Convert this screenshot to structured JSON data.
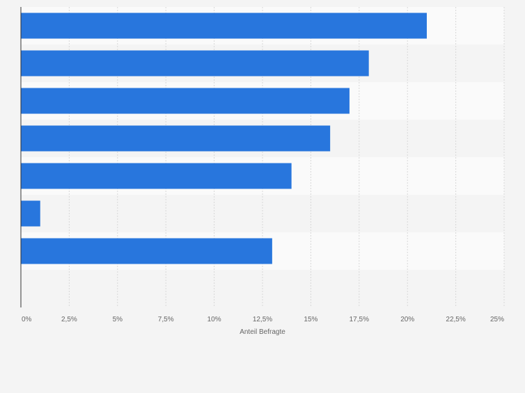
{
  "chart_data": {
    "type": "bar",
    "orientation": "horizontal",
    "categories": [
      "",
      "",
      "",
      "",
      "",
      "",
      "",
      ""
    ],
    "values": [
      21,
      18,
      17,
      16,
      14,
      1,
      13,
      null
    ],
    "xlabel": "Anteil Befragte",
    "xlim": [
      0,
      25
    ],
    "x_ticks": [
      0,
      2.5,
      5,
      7.5,
      10,
      12.5,
      15,
      17.5,
      20,
      22.5,
      25
    ],
    "x_tick_labels": [
      "0%",
      "2,5%",
      "5%",
      "7,5%",
      "10%",
      "12,5%",
      "15%",
      "17,5%",
      "20%",
      "22,5%",
      "25%"
    ],
    "grid": true,
    "legend": "none",
    "colors": {
      "bar": "#2876dd",
      "band_light": "#fafafa",
      "band_dark": "#f4f4f4",
      "gridline": "#d8d8d8",
      "axis": "#333333",
      "text": "#666666"
    }
  }
}
